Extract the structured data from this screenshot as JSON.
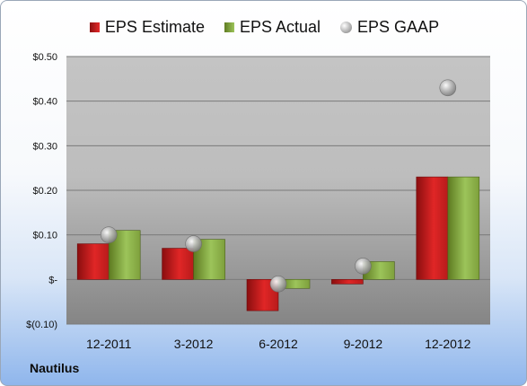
{
  "company": "Nautilus",
  "legend": {
    "estimate": "EPS Estimate",
    "actual": "EPS Actual",
    "gaap": "EPS GAAP"
  },
  "colors": {
    "estimate": "#d42222",
    "actual": "#8db446",
    "gaap": "#a8a8a8",
    "plot_background": "#a9a9a9"
  },
  "chart_data": {
    "type": "bar",
    "categories": [
      "12-2011",
      "3-2012",
      "6-2012",
      "9-2012",
      "12-2012"
    ],
    "series": [
      {
        "name": "EPS Estimate",
        "type": "bar",
        "values": [
          0.08,
          0.07,
          -0.07,
          -0.01,
          0.23
        ]
      },
      {
        "name": "EPS Actual",
        "type": "bar",
        "values": [
          0.11,
          0.09,
          -0.02,
          0.04,
          0.23
        ]
      },
      {
        "name": "EPS GAAP",
        "type": "scatter",
        "values": [
          0.1,
          0.08,
          -0.01,
          0.03,
          0.43
        ]
      }
    ],
    "ylim": [
      -0.1,
      0.5
    ],
    "yticks": [
      -0.1,
      0,
      0.1,
      0.2,
      0.3,
      0.4,
      0.5
    ],
    "ytick_labels": [
      "$(0.10)",
      "$-",
      "$0.10",
      "$0.20",
      "$0.30",
      "$0.40",
      "$0.50"
    ],
    "grid": true,
    "legend_position": "top"
  }
}
